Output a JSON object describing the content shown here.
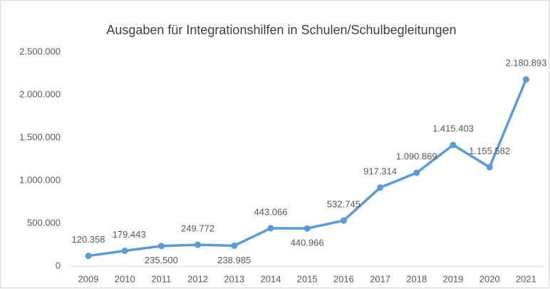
{
  "chart_data": {
    "type": "line",
    "title": "Ausgaben für Integrationshilfen in Schulen/Schulbegleitungen",
    "categories": [
      "2009",
      "2010",
      "2011",
      "2012",
      "2013",
      "2014",
      "2015",
      "2016",
      "2017",
      "2018",
      "2019",
      "2020",
      "2021"
    ],
    "series": [
      {
        "name": "Ausgaben",
        "color": "#5b9bd5",
        "values": [
          120358,
          179443,
          235500,
          249772,
          238985,
          443066,
          440966,
          532745,
          917314,
          1090869,
          1415403,
          1155582,
          2180893
        ],
        "value_labels": [
          "120.358",
          "179.443",
          "235.500",
          "249.772",
          "238.985",
          "443.066",
          "440.966",
          "532.745",
          "917.314",
          "1.090.869",
          "1.415.403",
          "1.155.582",
          "2.180.893"
        ]
      }
    ],
    "ylim": [
      0,
      2500000
    ],
    "yticks": [
      0,
      {
        "value": 500000,
        "label": "500.000"
      },
      {
        "value": 1000000,
        "label": "1.000.000"
      },
      {
        "value": 1500000,
        "label": "1.500.000"
      },
      {
        "value": 2000000,
        "label": "2.000.000"
      },
      {
        "value": 2500000,
        "label": "2.500.000"
      }
    ],
    "grid": false
  }
}
